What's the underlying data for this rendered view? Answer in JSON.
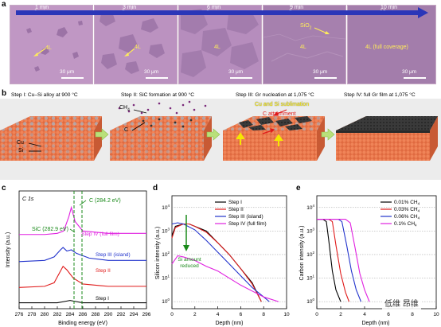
{
  "panel_a": {
    "letter": "a",
    "tiles": [
      {
        "time": "1 min",
        "label": "4L",
        "scale": "30 μm"
      },
      {
        "time": "3 min",
        "label": "4L",
        "scale": "30 μm"
      },
      {
        "time": "6 min",
        "label": "4L",
        "scale": "30 μm"
      },
      {
        "time": "9 min",
        "label": "4L",
        "label2": "SiO",
        "label2_sub": "2",
        "scale": "30 μm"
      },
      {
        "time": "10 min",
        "label": "4L (full coverage)",
        "scale": "30 μm"
      }
    ],
    "colors": {
      "substrate": "#b98fbf",
      "graphene": "#a07aa8",
      "arrow": "#2b36b8"
    }
  },
  "panel_b": {
    "letter": "b",
    "steps": [
      {
        "title": "Step I: Cu–Si alloy at 900 °C",
        "labels": [
          "Cu",
          "Si"
        ]
      },
      {
        "title": "Step II: SiC formation at 900 °C",
        "labels": [
          "CH",
          "4",
          "C"
        ]
      },
      {
        "title": "Step III: Gr nucleation at 1,075 °C",
        "labels": [
          "Cu and Si sublimation",
          "C attachment"
        ]
      },
      {
        "title": "Step IV: full Gr film at 1,075 °C",
        "labels": []
      }
    ],
    "colors": {
      "cu": "#e8744a",
      "si": "#9aa6b4",
      "graphene": "#2a2a2a",
      "sublimation": "#f5e700",
      "attachment": "#e01b1b"
    }
  },
  "panel_c": {
    "letter": "c",
    "tag": "C 1s",
    "peak_sic": "SiC (282.9 eV)",
    "peak_c": "C (284.2 eV)",
    "series": [
      {
        "name": "Step I",
        "color": "#000000"
      },
      {
        "name": "Step II",
        "color": "#e01b1b"
      },
      {
        "name": "Step III (island)",
        "color": "#2233cc"
      },
      {
        "name": "Step IV (full film)",
        "color": "#e020e0"
      }
    ],
    "ylabel": "Intensity (a.u.)",
    "xlabel": "Binding energy (eV)",
    "xticks": [
      "276",
      "278",
      "280",
      "282",
      "284",
      "286",
      "288",
      "290",
      "292",
      "294",
      "296"
    ]
  },
  "panel_d": {
    "letter": "d",
    "ylabel": "Silicon intensity (a.u.)",
    "xlabel": "Depth (nm)",
    "xticks": [
      "0",
      "2",
      "4",
      "6",
      "8",
      "10"
    ],
    "ytick_base": "10",
    "ytick_exps": [
      "4",
      "3",
      "2",
      "1",
      "0"
    ],
    "legend": [
      "Step I",
      "Step II",
      "Step III (island)",
      "Step IV (full film)"
    ],
    "annotation": [
      "Si amount",
      "reduced"
    ]
  },
  "panel_e": {
    "letter": "e",
    "ylabel": "Carbon intensity (a.u.)",
    "xlabel": "Depth (nm)",
    "xticks": [
      "0",
      "2",
      "4",
      "6",
      "8",
      "10"
    ],
    "ytick_base": "10",
    "ytick_exps": [
      "4",
      "3",
      "2",
      "1",
      "0"
    ],
    "legend": [
      {
        "text": "0.01% CH",
        "sub": "4",
        "color": "#000000"
      },
      {
        "text": "0.03% CH",
        "sub": "4",
        "color": "#e01b1b"
      },
      {
        "text": "0.06% CH",
        "sub": "4",
        "color": "#2233cc"
      },
      {
        "text": "0.1% CH",
        "sub": "4",
        "color": "#e020e0"
      }
    ]
  },
  "watermark": "低维 昂维",
  "chart_data": [
    {
      "type": "line",
      "panel": "c",
      "title": "",
      "xlabel": "Binding energy (eV)",
      "ylabel": "Intensity (a.u.)",
      "xlim": [
        276,
        296
      ],
      "series": [
        {
          "name": "Step I",
          "x": [
            276,
            280,
            282,
            283,
            284,
            285,
            286,
            290,
            296
          ],
          "y": [
            0.05,
            0.05,
            0.05,
            0.06,
            0.07,
            0.06,
            0.05,
            0.05,
            0.05
          ]
        },
        {
          "name": "Step II",
          "x": [
            276,
            280,
            281.5,
            282.5,
            282.9,
            283.5,
            284.5,
            286,
            290,
            296
          ],
          "y": [
            0.18,
            0.19,
            0.22,
            0.32,
            0.36,
            0.33,
            0.26,
            0.21,
            0.19,
            0.19
          ]
        },
        {
          "name": "Step III (island)",
          "x": [
            276,
            280,
            281.5,
            282.5,
            282.9,
            283.5,
            284.2,
            285,
            287,
            290,
            296
          ],
          "y": [
            0.4,
            0.41,
            0.44,
            0.5,
            0.52,
            0.49,
            0.5,
            0.47,
            0.43,
            0.41,
            0.41
          ]
        },
        {
          "name": "Step IV (full film)",
          "x": [
            276,
            280,
            282,
            283,
            283.8,
            284.2,
            284.8,
            286,
            290,
            296
          ],
          "y": [
            0.63,
            0.63,
            0.64,
            0.66,
            0.78,
            0.86,
            0.74,
            0.66,
            0.64,
            0.64
          ]
        }
      ],
      "annotations": [
        "SiC (282.9 eV)",
        "C (284.2 eV)",
        "C 1s"
      ]
    },
    {
      "type": "line",
      "panel": "d",
      "title": "",
      "xlabel": "Depth (nm)",
      "ylabel": "Silicon intensity (a.u.)",
      "xlim": [
        0,
        10
      ],
      "ylim_log10": [
        -0.3,
        4.5
      ],
      "series": [
        {
          "name": "Step I",
          "x": [
            0,
            0.3,
            1,
            1.5,
            2,
            3,
            4,
            5,
            6,
            7,
            7.8
          ],
          "y_log10": [
            2.8,
            3.2,
            3.3,
            3.3,
            3.2,
            3.0,
            2.5,
            2.0,
            1.4,
            0.8,
            0.0
          ]
        },
        {
          "name": "Step II",
          "x": [
            0,
            0.3,
            1,
            1.5,
            2,
            3,
            4,
            5,
            6,
            7,
            7.8
          ],
          "y_log10": [
            2.7,
            3.15,
            3.3,
            3.3,
            3.2,
            2.95,
            2.5,
            2.0,
            1.4,
            0.75,
            0.0
          ]
        },
        {
          "name": "Step III (island)",
          "x": [
            0,
            0.5,
            1,
            2,
            3,
            4,
            5,
            6,
            7,
            8,
            8.5
          ],
          "y_log10": [
            3.3,
            3.35,
            3.3,
            3.05,
            2.6,
            2.1,
            1.6,
            1.1,
            0.6,
            0.2,
            0.0
          ]
        },
        {
          "name": "Step IV (full film)",
          "x": [
            0,
            0.5,
            1,
            2,
            3,
            4,
            5,
            6,
            7,
            8,
            9.3
          ],
          "y_log10": [
            1.6,
            1.95,
            1.9,
            1.75,
            1.5,
            1.3,
            1.0,
            0.7,
            0.45,
            0.2,
            0.0
          ]
        }
      ],
      "annotations": [
        "Si amount reduced"
      ]
    },
    {
      "type": "line",
      "panel": "e",
      "title": "",
      "xlabel": "Depth (nm)",
      "ylabel": "Carbon intensity (a.u.)",
      "xlim": [
        0,
        10
      ],
      "ylim_log10": [
        -0.3,
        4.5
      ],
      "series": [
        {
          "name": "0.01% CH4",
          "x": [
            0,
            0.5,
            0.8,
            1.0,
            1.3,
            1.6,
            2.0
          ],
          "y_log10": [
            3.5,
            3.5,
            3.4,
            2.6,
            1.3,
            0.5,
            0.0
          ]
        },
        {
          "name": "0.03% CH4",
          "x": [
            0,
            1.0,
            1.3,
            1.6,
            2.0,
            2.4,
            2.7
          ],
          "y_log10": [
            3.5,
            3.5,
            3.4,
            2.4,
            1.2,
            0.4,
            0.0
          ]
        },
        {
          "name": "0.06% CH4",
          "x": [
            0,
            1.8,
            2.1,
            2.5,
            2.9,
            3.3,
            3.7
          ],
          "y_log10": [
            3.5,
            3.5,
            3.4,
            2.4,
            1.3,
            0.5,
            0.0
          ]
        },
        {
          "name": "0.1% CH4",
          "x": [
            0,
            2.4,
            2.8,
            3.2,
            3.6,
            4.0,
            4.4
          ],
          "y_log10": [
            3.5,
            3.5,
            3.35,
            2.3,
            1.2,
            0.5,
            0.0
          ]
        }
      ]
    }
  ]
}
